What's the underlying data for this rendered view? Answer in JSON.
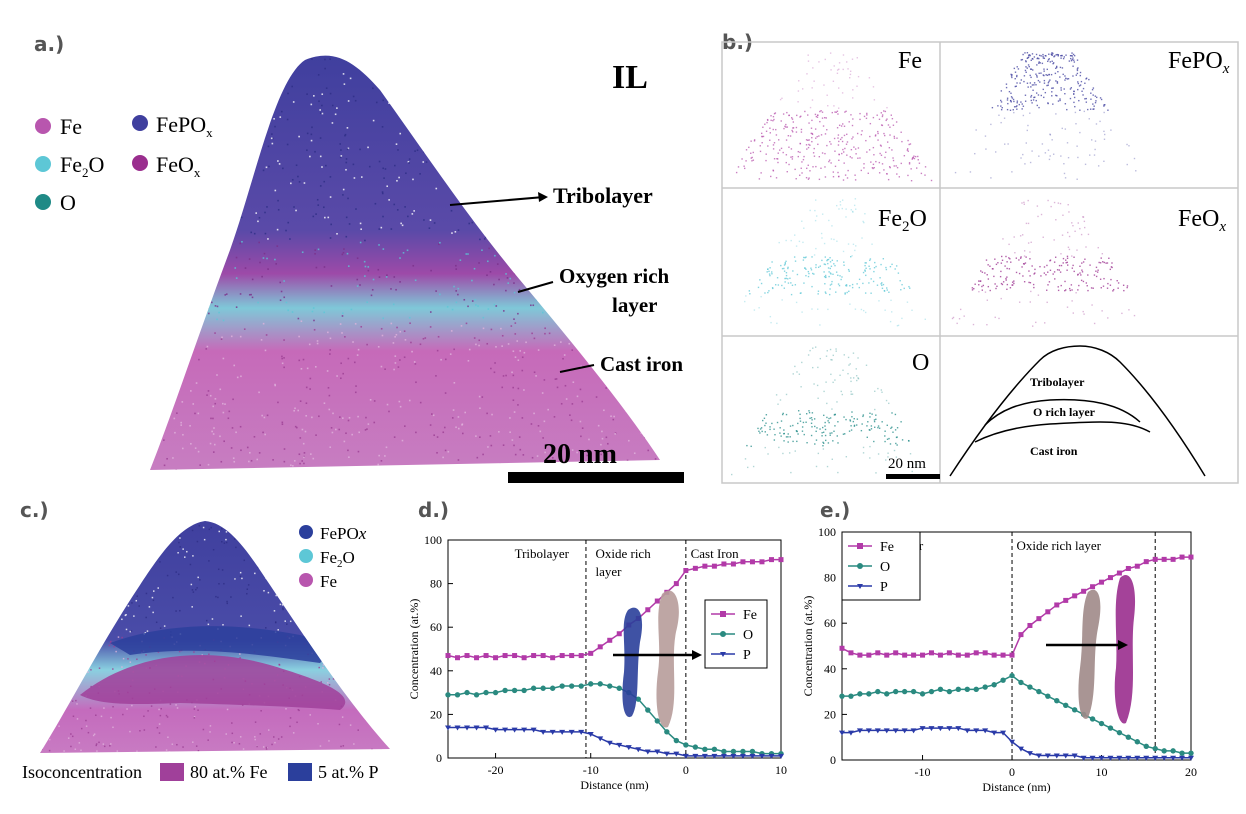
{
  "colors": {
    "fe": "#b856ae",
    "fepox": "#3f3f9e",
    "fe2o": "#5dc7d6",
    "o": "#1f8a86",
    "feox": "#9a2e8e",
    "iso_fe": "#a0409a",
    "iso_p": "#2b3f9c"
  },
  "panels": {
    "a": {
      "label": "a.)",
      "title": "IL",
      "legend": [
        {
          "key": "fe",
          "text": "Fe"
        },
        {
          "key": "fepox",
          "text": "FePO",
          "sub": "x"
        },
        {
          "key": "fe2o",
          "text": "Fe",
          "sub": "2",
          "suffix": "O"
        },
        {
          "key": "feox",
          "text": "FeO",
          "sub": "x"
        },
        {
          "key": "o",
          "text": "O"
        }
      ],
      "annotations": [
        "Tribolayer",
        "Oxygen rich",
        "layer",
        "Cast iron"
      ],
      "scalebar": "20 nm"
    },
    "b": {
      "label": "b.)",
      "tiles": [
        {
          "text": "Fe",
          "sub": "",
          "color": "fe"
        },
        {
          "text": "FePO",
          "sub": "x",
          "color": "fepox"
        },
        {
          "text": "Fe",
          "sub": "2",
          "suffix": "O",
          "color": "fe2o"
        },
        {
          "text": "FeO",
          "sub": "x",
          "color": "feox"
        },
        {
          "text": "O",
          "sub": "",
          "color": "o"
        }
      ],
      "schematic_labels": [
        "Tribolayer",
        "O rich layer",
        "Cast iron"
      ],
      "scalebar": "20 nm"
    },
    "c": {
      "label": "c.)",
      "legend": [
        {
          "key": "fepox",
          "text": "FePO",
          "sub": "x"
        },
        {
          "key": "fe2o",
          "text": "Fe",
          "sub": "2",
          "suffix": "O"
        },
        {
          "key": "fe",
          "text": "Fe"
        }
      ],
      "iso_title": "Isoconcentration",
      "iso_fe": "80 at.% Fe",
      "iso_p": "5 at.% P"
    },
    "d": {
      "label": "d.)"
    },
    "e": {
      "label": "e.)"
    }
  },
  "chart_data": [
    {
      "id": "d",
      "type": "line",
      "xlabel": "Distance (nm)",
      "ylabel": "Concentration (at.%)",
      "xlim": [
        -25,
        10
      ],
      "ylim": [
        0,
        100
      ],
      "xticks": [
        -20,
        -10,
        0,
        10
      ],
      "yticks": [
        0,
        20,
        40,
        60,
        80,
        100
      ],
      "region_labels": [
        {
          "text": "Tribolayer",
          "x": -18
        },
        {
          "text": "Oxide rich",
          "x": -9.5,
          "line2": "layer"
        },
        {
          "text": "Cast Iron",
          "x": 0.5
        }
      ],
      "dividers": [
        -10.5,
        0
      ],
      "legend": [
        "Fe",
        "O",
        "P"
      ],
      "series": [
        {
          "name": "Fe",
          "color": "#b23aa8",
          "marker": "square",
          "x": [
            -25,
            -24,
            -23,
            -22,
            -21,
            -20,
            -19,
            -18,
            -17,
            -16,
            -15,
            -14,
            -13,
            -12,
            -11,
            -10,
            -9,
            -8,
            -7,
            -6,
            -5,
            -4,
            -3,
            -2,
            -1,
            0,
            1,
            2,
            3,
            4,
            5,
            6,
            7,
            8,
            9,
            10
          ],
          "y": [
            47,
            46,
            47,
            46,
            47,
            46,
            47,
            47,
            46,
            47,
            47,
            46,
            47,
            47,
            47,
            48,
            51,
            54,
            57,
            61,
            64,
            68,
            72,
            76,
            80,
            86,
            87,
            88,
            88,
            89,
            89,
            90,
            90,
            90,
            91,
            91
          ]
        },
        {
          "name": "O",
          "color": "#2a8a80",
          "marker": "circle",
          "x": [
            -25,
            -24,
            -23,
            -22,
            -21,
            -20,
            -19,
            -18,
            -17,
            -16,
            -15,
            -14,
            -13,
            -12,
            -11,
            -10,
            -9,
            -8,
            -7,
            -6,
            -5,
            -4,
            -3,
            -2,
            -1,
            0,
            1,
            2,
            3,
            4,
            5,
            6,
            7,
            8,
            9,
            10
          ],
          "y": [
            29,
            29,
            30,
            29,
            30,
            30,
            31,
            31,
            31,
            32,
            32,
            32,
            33,
            33,
            33,
            34,
            34,
            33,
            32,
            30,
            27,
            22,
            17,
            12,
            8,
            6,
            5,
            4,
            4,
            3,
            3,
            3,
            3,
            2,
            2,
            2
          ]
        },
        {
          "name": "P",
          "color": "#2a3aa8",
          "marker": "triangle",
          "x": [
            -25,
            -24,
            -23,
            -22,
            -21,
            -20,
            -19,
            -18,
            -17,
            -16,
            -15,
            -14,
            -13,
            -12,
            -11,
            -10,
            -9,
            -8,
            -7,
            -6,
            -5,
            -4,
            -3,
            -2,
            -1,
            0,
            1,
            2,
            3,
            4,
            5,
            6,
            7,
            8,
            9,
            10
          ],
          "y": [
            14,
            14,
            14,
            14,
            14,
            13,
            13,
            13,
            13,
            13,
            12,
            12,
            12,
            12,
            12,
            11,
            9,
            7,
            6,
            5,
            4,
            3,
            3,
            2,
            2,
            1,
            1,
            1,
            1,
            1,
            1,
            1,
            1,
            1,
            1,
            1
          ]
        }
      ]
    },
    {
      "id": "e",
      "type": "line",
      "xlabel": "Distance (nm)",
      "ylabel": "Concentration (at.%)",
      "xlim": [
        -19,
        20
      ],
      "ylim": [
        0,
        100
      ],
      "xticks": [
        -10,
        0,
        10,
        20
      ],
      "yticks": [
        0,
        20,
        40,
        60,
        80,
        100
      ],
      "region_labels": [
        {
          "text": "Tribolayer",
          "x": -16
        },
        {
          "text": "Oxide rich layer",
          "x": 0.5
        }
      ],
      "dividers": [
        0,
        16
      ],
      "legend": [
        "Fe",
        "O",
        "P"
      ],
      "series": [
        {
          "name": "Fe",
          "color": "#b23aa8",
          "marker": "square",
          "x": [
            -19,
            -18,
            -17,
            -16,
            -15,
            -14,
            -13,
            -12,
            -11,
            -10,
            -9,
            -8,
            -7,
            -6,
            -5,
            -4,
            -3,
            -2,
            -1,
            0,
            1,
            2,
            3,
            4,
            5,
            6,
            7,
            8,
            9,
            10,
            11,
            12,
            13,
            14,
            15,
            16,
            17,
            18,
            19,
            20
          ],
          "y": [
            49,
            47,
            46,
            46,
            47,
            46,
            47,
            46,
            46,
            46,
            47,
            46,
            47,
            46,
            46,
            47,
            47,
            46,
            46,
            46,
            55,
            59,
            62,
            65,
            68,
            70,
            72,
            74,
            76,
            78,
            80,
            82,
            84,
            85,
            87,
            88,
            88,
            88,
            89,
            89
          ]
        },
        {
          "name": "O",
          "color": "#2a8a80",
          "marker": "circle",
          "x": [
            -19,
            -18,
            -17,
            -16,
            -15,
            -14,
            -13,
            -12,
            -11,
            -10,
            -9,
            -8,
            -7,
            -6,
            -5,
            -4,
            -3,
            -2,
            -1,
            0,
            1,
            2,
            3,
            4,
            5,
            6,
            7,
            8,
            9,
            10,
            11,
            12,
            13,
            14,
            15,
            16,
            17,
            18,
            19,
            20
          ],
          "y": [
            28,
            28,
            29,
            29,
            30,
            29,
            30,
            30,
            30,
            29,
            30,
            31,
            30,
            31,
            31,
            31,
            32,
            33,
            35,
            37,
            34,
            32,
            30,
            28,
            26,
            24,
            22,
            20,
            18,
            16,
            14,
            12,
            10,
            8,
            6,
            5,
            4,
            4,
            3,
            3
          ]
        },
        {
          "name": "P",
          "color": "#2a3aa8",
          "marker": "triangle",
          "x": [
            -19,
            -18,
            -17,
            -16,
            -15,
            -14,
            -13,
            -12,
            -11,
            -10,
            -9,
            -8,
            -7,
            -6,
            -5,
            -4,
            -3,
            -2,
            -1,
            0,
            1,
            2,
            3,
            4,
            5,
            6,
            7,
            8,
            9,
            10,
            11,
            12,
            13,
            14,
            15,
            16,
            17,
            18,
            19,
            20
          ],
          "y": [
            12,
            12,
            13,
            13,
            13,
            13,
            13,
            13,
            13,
            14,
            14,
            14,
            14,
            14,
            13,
            13,
            13,
            12,
            12,
            8,
            5,
            3,
            2,
            2,
            2,
            2,
            2,
            1,
            1,
            1,
            1,
            1,
            1,
            1,
            1,
            1,
            1,
            1,
            1,
            1
          ]
        }
      ]
    }
  ]
}
